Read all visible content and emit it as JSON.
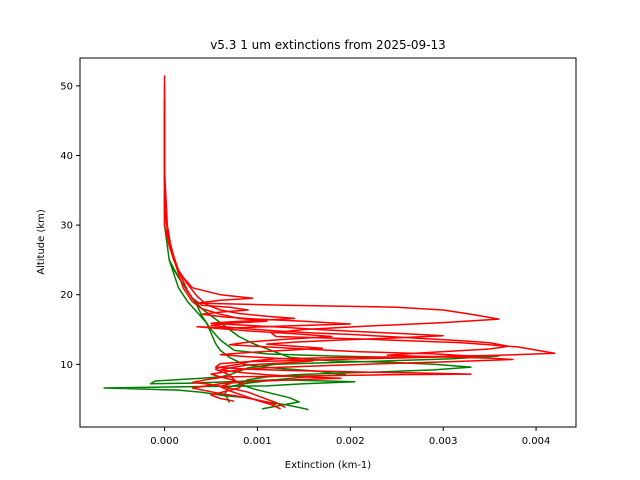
{
  "chart_data": {
    "type": "line",
    "title": "v5.3 1 um extinctions from 2025-09-13",
    "xlabel": "Extinction (km-1)",
    "ylabel": "Altitude (km)",
    "xlim": [
      -0.00091,
      0.00443
    ],
    "ylim": [
      1,
      54
    ],
    "xticks": [
      0.0,
      0.001,
      0.002,
      0.003,
      0.004
    ],
    "xtick_labels": [
      "0.000",
      "0.001",
      "0.002",
      "0.003",
      "0.004"
    ],
    "yticks": [
      10,
      20,
      30,
      40,
      50
    ],
    "ytick_labels": [
      "10",
      "20",
      "30",
      "40",
      "50"
    ],
    "grid": false,
    "legend": false,
    "colors": {
      "green": "#008000",
      "red": "#ff0000"
    },
    "series": [
      {
        "color": "#008000",
        "points": [
          [
            0.0,
            35
          ],
          [
            0.0,
            30
          ],
          [
            5e-05,
            25
          ],
          [
            0.0001,
            23
          ],
          [
            0.00015,
            21
          ],
          [
            0.00025,
            19
          ],
          [
            0.00035,
            17.5
          ],
          [
            0.00045,
            16
          ],
          [
            0.0005,
            14.5
          ],
          [
            0.00055,
            13
          ],
          [
            0.0006,
            12
          ],
          [
            0.0007,
            11
          ],
          [
            0.00085,
            10
          ],
          [
            0.00115,
            9.5
          ],
          [
            0.00165,
            9
          ],
          [
            0.00195,
            8.5
          ],
          [
            0.0016,
            8.3
          ],
          [
            0.0012,
            7.8
          ],
          [
            0.0009,
            7.3
          ],
          [
            0.0007,
            6.8
          ],
          [
            0.00065,
            5.8
          ],
          [
            0.0007,
            4.5
          ]
        ]
      },
      {
        "color": "#008000",
        "points": [
          [
            5e-05,
            25
          ],
          [
            0.00015,
            22.5
          ],
          [
            0.00025,
            20.5
          ],
          [
            0.00035,
            18.5
          ],
          [
            0.0004,
            17
          ],
          [
            0.0005,
            15
          ],
          [
            0.0006,
            13.5
          ],
          [
            0.00075,
            12
          ],
          [
            0.0011,
            11.5
          ],
          [
            0.0018,
            11.2
          ],
          [
            0.0025,
            11
          ],
          [
            0.0036,
            11.2
          ],
          [
            0.0031,
            10.8
          ],
          [
            0.0024,
            10.5
          ],
          [
            0.0017,
            10.2
          ],
          [
            0.0012,
            10
          ],
          [
            0.0009,
            9.5
          ],
          [
            0.0007,
            8.5
          ],
          [
            0.0006,
            8.2
          ],
          [
            0.0004,
            8
          ],
          [
            -0.0001,
            7.6
          ],
          [
            -0.00015,
            7.2
          ],
          [
            0.0003,
            7.3
          ],
          [
            0.0007,
            7.5
          ],
          [
            0.0012,
            7.8
          ],
          [
            0.00205,
            7.5
          ],
          [
            0.0015,
            7.2
          ],
          [
            0.0011,
            6.9
          ],
          [
            0.0003,
            6.8
          ],
          [
            -0.00065,
            6.6
          ],
          [
            0.00015,
            6.3
          ],
          [
            0.0004,
            6.0
          ],
          [
            0.00065,
            5.5
          ],
          [
            0.0009,
            5.2
          ],
          [
            0.00105,
            4.7
          ],
          [
            0.0013,
            4.2
          ],
          [
            0.00145,
            3.8
          ],
          [
            0.00155,
            3.5
          ]
        ]
      },
      {
        "color": "#008000",
        "points": [
          [
            8e-05,
            24
          ],
          [
            0.0002,
            21.5
          ],
          [
            0.0003,
            19.5
          ],
          [
            0.0004,
            18
          ],
          [
            0.00055,
            16.5
          ],
          [
            0.0007,
            15
          ],
          [
            0.0008,
            14
          ],
          [
            0.00095,
            13
          ],
          [
            0.00115,
            12
          ],
          [
            0.00135,
            11
          ],
          [
            0.0018,
            10.5
          ],
          [
            0.0024,
            10.3
          ],
          [
            0.0029,
            10
          ],
          [
            0.0033,
            9.6
          ],
          [
            0.0029,
            9.2
          ],
          [
            0.0023,
            8.9
          ],
          [
            0.0018,
            8.7
          ],
          [
            0.0014,
            8.5
          ],
          [
            0.0011,
            8.2
          ],
          [
            0.0009,
            7.8
          ],
          [
            0.0008,
            7.2
          ],
          [
            0.00095,
            6.5
          ],
          [
            0.0011,
            6.0
          ],
          [
            0.00135,
            5.2
          ],
          [
            0.00145,
            4.6
          ],
          [
            0.00125,
            4.1
          ],
          [
            0.00105,
            3.6
          ]
        ]
      },
      {
        "color": "#ff0000",
        "points": [
          [
            0.0,
            51.5
          ],
          [
            0.0,
            45
          ],
          [
            0.0,
            40
          ],
          [
            0.0,
            35
          ],
          [
            0.0,
            30
          ],
          [
            5e-05,
            27
          ],
          [
            0.0001,
            25
          ],
          [
            0.00015,
            23.5
          ],
          [
            0.0002,
            22.5
          ],
          [
            0.0003,
            21
          ],
          [
            0.0006,
            20
          ],
          [
            0.00095,
            19.5
          ],
          [
            0.0006,
            19.2
          ],
          [
            0.00035,
            18.8
          ],
          [
            0.0013,
            18.5
          ],
          [
            0.0025,
            18.2
          ],
          [
            0.003,
            17.8
          ],
          [
            0.0033,
            17.2
          ],
          [
            0.0036,
            16.5
          ],
          [
            0.003,
            16
          ],
          [
            0.0022,
            15.5
          ],
          [
            0.0015,
            15
          ],
          [
            0.00115,
            14.5
          ],
          [
            0.0012,
            14
          ],
          [
            0.0022,
            13.6
          ],
          [
            0.0032,
            13.1
          ],
          [
            0.0038,
            12.5
          ],
          [
            0.0042,
            11.6
          ],
          [
            0.0036,
            11.3
          ],
          [
            0.0028,
            11.1
          ],
          [
            0.002,
            11
          ],
          [
            0.0012,
            10.8
          ],
          [
            0.00095,
            10.5
          ],
          [
            0.0008,
            10
          ],
          [
            0.0006,
            9.6
          ],
          [
            0.00055,
            9.3
          ],
          [
            0.0006,
            9
          ],
          [
            0.0007,
            8.5
          ],
          [
            0.00075,
            7.8
          ],
          [
            0.0007,
            7.2
          ],
          [
            0.0006,
            6.8
          ],
          [
            0.0007,
            6.2
          ],
          [
            0.00085,
            5.5
          ],
          [
            0.001,
            4.8
          ],
          [
            0.00115,
            4.2
          ],
          [
            0.00125,
            3.6
          ]
        ]
      },
      {
        "color": "#ff0000",
        "points": [
          [
            0.0,
            50
          ],
          [
            0.0,
            40
          ],
          [
            0.0,
            32
          ],
          [
            5e-05,
            28
          ],
          [
            0.0001,
            25
          ],
          [
            0.0002,
            22
          ],
          [
            0.00025,
            20.5
          ],
          [
            0.0003,
            19.5
          ],
          [
            0.0004,
            18.5
          ],
          [
            0.0007,
            18.2
          ],
          [
            0.0009,
            17.8
          ],
          [
            0.0006,
            17.5
          ],
          [
            0.0004,
            17.2
          ],
          [
            0.00065,
            16.8
          ],
          [
            0.001,
            16.5
          ],
          [
            0.0015,
            16.2
          ],
          [
            0.002,
            15.8
          ],
          [
            0.0013,
            15.5
          ],
          [
            0.0007,
            15.2
          ],
          [
            0.00035,
            15.4
          ],
          [
            0.0009,
            14.8
          ],
          [
            0.0014,
            14.4
          ],
          [
            0.0018,
            14
          ],
          [
            0.0013,
            13.6
          ],
          [
            0.0009,
            13.2
          ],
          [
            0.0007,
            12.8
          ],
          [
            0.0011,
            12.5
          ],
          [
            0.0015,
            12.2
          ],
          [
            0.0021,
            11.8
          ],
          [
            0.0029,
            11.5
          ],
          [
            0.0033,
            11.2
          ],
          [
            0.0028,
            11.0
          ],
          [
            0.0021,
            10.8
          ],
          [
            0.0016,
            10.6
          ],
          [
            0.0009,
            10.4
          ],
          [
            0.0006,
            10.1
          ],
          [
            0.00055,
            9.6
          ],
          [
            0.0009,
            9.3
          ],
          [
            0.0014,
            9.1
          ],
          [
            0.0021,
            8.9
          ],
          [
            0.0026,
            8.8
          ],
          [
            0.0033,
            8.6
          ],
          [
            0.0024,
            8.5
          ],
          [
            0.0013,
            8.3
          ],
          [
            0.00065,
            8.2
          ],
          [
            0.00045,
            7.8
          ],
          [
            0.0003,
            7.4
          ],
          [
            0.0005,
            7.1
          ],
          [
            0.0007,
            6.6
          ],
          [
            0.0009,
            6.0
          ],
          [
            0.001,
            5.5
          ],
          [
            0.0011,
            5.0
          ],
          [
            0.0012,
            4.5
          ],
          [
            0.0013,
            3.8
          ]
        ]
      },
      {
        "color": "#ff0000",
        "points": [
          [
            0.0,
            48
          ],
          [
            0.0,
            38
          ],
          [
            3e-05,
            30
          ],
          [
            8e-05,
            26
          ],
          [
            0.00015,
            23
          ],
          [
            0.0002,
            21
          ],
          [
            0.0003,
            19
          ],
          [
            0.0004,
            18
          ],
          [
            0.0006,
            17.2
          ],
          [
            0.0008,
            16.6
          ],
          [
            0.0011,
            16.2
          ],
          [
            0.0007,
            15.9
          ],
          [
            0.0005,
            15.6
          ],
          [
            0.0008,
            15.2
          ],
          [
            0.0012,
            14.8
          ],
          [
            0.0016,
            14.5
          ],
          [
            0.002,
            14.3
          ],
          [
            0.0024,
            14
          ],
          [
            0.0028,
            13.7
          ],
          [
            0.0032,
            13.4
          ],
          [
            0.0035,
            13.1
          ],
          [
            0.0037,
            12.6
          ],
          [
            0.0035,
            12.2
          ],
          [
            0.0031,
            11.9
          ],
          [
            0.0027,
            11.6
          ],
          [
            0.0024,
            11.3
          ],
          [
            0.0029,
            11.1
          ],
          [
            0.0035,
            10.9
          ],
          [
            0.00375,
            10.7
          ],
          [
            0.0031,
            10.4
          ],
          [
            0.0024,
            10.1
          ],
          [
            0.0017,
            9.8
          ],
          [
            0.0011,
            9.5
          ],
          [
            0.0008,
            9.2
          ],
          [
            0.00065,
            8.9
          ],
          [
            0.0005,
            8.6
          ],
          [
            0.0006,
            8.2
          ],
          [
            0.00075,
            7.7
          ],
          [
            0.00085,
            7.2
          ],
          [
            0.0008,
            6.6
          ],
          [
            0.00065,
            6.1
          ],
          [
            0.0005,
            5.6
          ],
          [
            0.0006,
            5.1
          ],
          [
            0.00075,
            4.7
          ]
        ]
      },
      {
        "color": "#ff0000",
        "points": [
          [
            0.0,
            46
          ],
          [
            0.0,
            36
          ],
          [
            3e-05,
            29
          ],
          [
            0.0001,
            25.5
          ],
          [
            0.00015,
            23.5
          ],
          [
            0.00025,
            21.5
          ],
          [
            0.00035,
            19.8
          ],
          [
            0.00045,
            18.6
          ],
          [
            0.0006,
            17.8
          ],
          [
            0.0008,
            17.3
          ],
          [
            0.0011,
            16.9
          ],
          [
            0.0014,
            16.6
          ],
          [
            0.001,
            16.3
          ],
          [
            0.0007,
            16.1
          ],
          [
            0.0005,
            15.9
          ],
          [
            0.0009,
            15.6
          ],
          [
            0.0013,
            15.3
          ],
          [
            0.00165,
            15.0
          ],
          [
            0.0021,
            14.7
          ],
          [
            0.0026,
            14.4
          ],
          [
            0.003,
            14.1
          ],
          [
            0.0025,
            13.8
          ],
          [
            0.0019,
            13.5
          ],
          [
            0.0014,
            13.2
          ],
          [
            0.0011,
            12.9
          ],
          [
            0.0014,
            12.6
          ],
          [
            0.0017,
            12.3
          ],
          [
            0.0013,
            12.0
          ],
          [
            0.0009,
            11.7
          ],
          [
            0.0006,
            11.4
          ],
          [
            0.0009,
            11.1
          ],
          [
            0.0013,
            10.8
          ],
          [
            0.0016,
            10.5
          ],
          [
            0.0013,
            10.2
          ],
          [
            0.0009,
            9.9
          ],
          [
            0.00075,
            9.6
          ],
          [
            0.0006,
            9.2
          ],
          [
            0.00085,
            8.8
          ],
          [
            0.0011,
            8.5
          ],
          [
            0.0015,
            8.2
          ],
          [
            0.0019,
            8.0
          ],
          [
            0.0014,
            7.8
          ],
          [
            0.0009,
            7.5
          ],
          [
            0.0006,
            7.2
          ],
          [
            0.00045,
            6.9
          ],
          [
            0.0003,
            6.6
          ],
          [
            0.00045,
            6.2
          ],
          [
            0.0006,
            5.8
          ],
          [
            0.0008,
            5.4
          ],
          [
            0.00095,
            5.0
          ],
          [
            0.0011,
            4.6
          ],
          [
            0.0012,
            4.2
          ]
        ]
      }
    ]
  }
}
